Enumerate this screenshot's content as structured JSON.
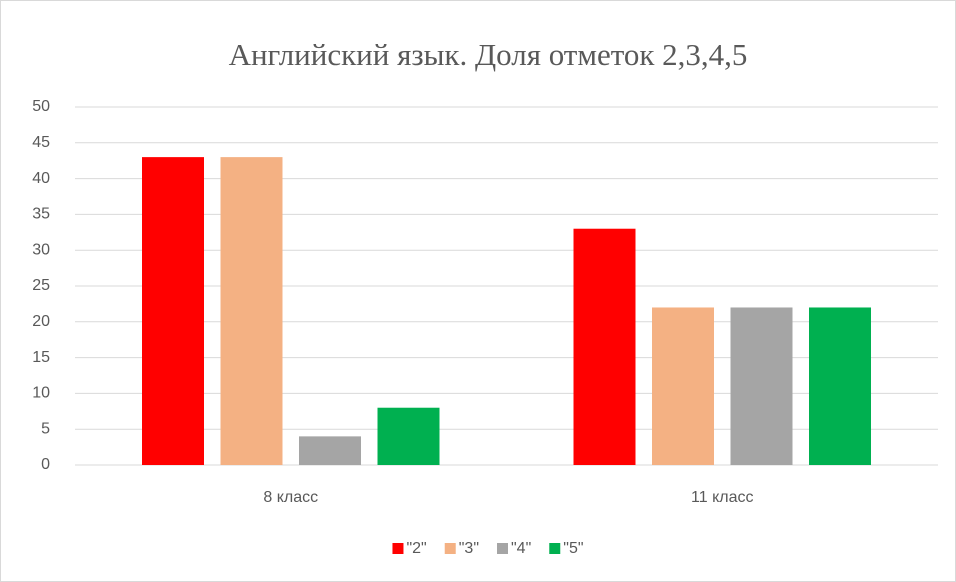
{
  "chart_data": {
    "type": "bar",
    "title": "Английский язык. Доля отметок 2,3,4,5",
    "categories": [
      "8 класс",
      "11 класс"
    ],
    "series": [
      {
        "name": "\"2\"",
        "color": "#ff0000",
        "values": [
          43,
          33
        ]
      },
      {
        "name": "\"3\"",
        "color": "#f4b183",
        "values": [
          43,
          22
        ]
      },
      {
        "name": "\"4\"",
        "color": "#a5a5a5",
        "values": [
          4,
          22
        ]
      },
      {
        "name": "\"5\"",
        "color": "#00b050",
        "values": [
          8,
          22
        ]
      }
    ],
    "ylim": [
      0,
      50
    ],
    "yticks": [
      0,
      5,
      10,
      15,
      20,
      25,
      30,
      35,
      40,
      45,
      50
    ],
    "grid": true,
    "legend": "bottom"
  }
}
